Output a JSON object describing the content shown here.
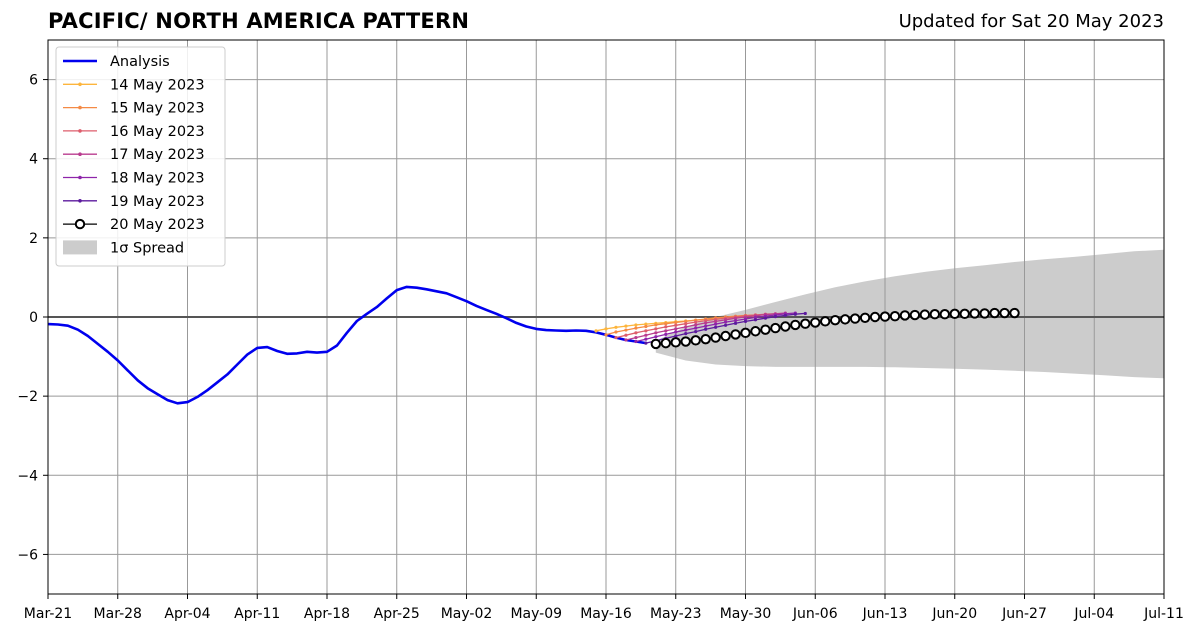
{
  "header": {
    "title": "PACIFIC/ NORTH AMERICA PATTERN",
    "updated": "Updated for Sat 20 May 2023"
  },
  "colors": {
    "analysis": "#0000ee",
    "spread": "#cccccc",
    "grid": "#999999",
    "forecast_20": "#000000"
  },
  "chart_data": {
    "type": "line",
    "title": "PACIFIC/ NORTH AMERICA PATTERN",
    "xlabel": "",
    "ylabel": "",
    "xlim": [
      "2023-03-21",
      "2023-07-11"
    ],
    "ylim": [
      -7,
      7
    ],
    "grid": true,
    "legend_position": "top-left",
    "x_tick_labels": [
      "Mar-21",
      "Mar-28",
      "Apr-04",
      "Apr-11",
      "Apr-18",
      "Apr-25",
      "May-02",
      "May-09",
      "May-16",
      "May-23",
      "May-30",
      "Jun-06",
      "Jun-13",
      "Jun-20",
      "Jun-27",
      "Jul-04",
      "Jul-11"
    ],
    "x_tick_dates": [
      "2023-03-21",
      "2023-03-28",
      "2023-04-04",
      "2023-04-11",
      "2023-04-18",
      "2023-04-25",
      "2023-05-02",
      "2023-05-09",
      "2023-05-16",
      "2023-05-23",
      "2023-05-30",
      "2023-06-06",
      "2023-06-13",
      "2023-06-20",
      "2023-06-27",
      "2023-07-04",
      "2023-07-11"
    ],
    "y_ticks": [
      -6,
      -4,
      -2,
      0,
      2,
      4,
      6
    ],
    "y_tick_labels": [
      "−6",
      "−4",
      "−2",
      "0",
      "2",
      "4",
      "6"
    ],
    "analysis": {
      "name": "Analysis",
      "color": "#0000ee",
      "points": [
        [
          "2023-03-21",
          -0.18
        ],
        [
          "2023-03-22",
          -0.19
        ],
        [
          "2023-03-23",
          -0.22
        ],
        [
          "2023-03-24",
          -0.32
        ],
        [
          "2023-03-25",
          -0.48
        ],
        [
          "2023-03-26",
          -0.68
        ],
        [
          "2023-03-27",
          -0.88
        ],
        [
          "2023-03-28",
          -1.1
        ],
        [
          "2023-03-29",
          -1.35
        ],
        [
          "2023-03-30",
          -1.6
        ],
        [
          "2023-03-31",
          -1.8
        ],
        [
          "2023-04-01",
          -1.95
        ],
        [
          "2023-04-02",
          -2.1
        ],
        [
          "2023-04-03",
          -2.18
        ],
        [
          "2023-04-04",
          -2.15
        ],
        [
          "2023-04-05",
          -2.02
        ],
        [
          "2023-04-06",
          -1.85
        ],
        [
          "2023-04-07",
          -1.65
        ],
        [
          "2023-04-08",
          -1.45
        ],
        [
          "2023-04-09",
          -1.2
        ],
        [
          "2023-04-10",
          -0.95
        ],
        [
          "2023-04-11",
          -0.78
        ],
        [
          "2023-04-12",
          -0.76
        ],
        [
          "2023-04-13",
          -0.86
        ],
        [
          "2023-04-14",
          -0.93
        ],
        [
          "2023-04-15",
          -0.92
        ],
        [
          "2023-04-16",
          -0.88
        ],
        [
          "2023-04-17",
          -0.9
        ],
        [
          "2023-04-18",
          -0.88
        ],
        [
          "2023-04-19",
          -0.72
        ],
        [
          "2023-04-20",
          -0.4
        ],
        [
          "2023-04-21",
          -0.1
        ],
        [
          "2023-04-22",
          0.08
        ],
        [
          "2023-04-23",
          0.25
        ],
        [
          "2023-04-24",
          0.47
        ],
        [
          "2023-04-25",
          0.68
        ],
        [
          "2023-04-26",
          0.76
        ],
        [
          "2023-04-27",
          0.74
        ],
        [
          "2023-04-28",
          0.7
        ],
        [
          "2023-04-29",
          0.65
        ],
        [
          "2023-04-30",
          0.6
        ],
        [
          "2023-05-01",
          0.5
        ],
        [
          "2023-05-02",
          0.4
        ],
        [
          "2023-05-03",
          0.28
        ],
        [
          "2023-05-04",
          0.18
        ],
        [
          "2023-05-05",
          0.08
        ],
        [
          "2023-05-06",
          -0.03
        ],
        [
          "2023-05-07",
          -0.15
        ],
        [
          "2023-05-08",
          -0.24
        ],
        [
          "2023-05-09",
          -0.3
        ],
        [
          "2023-05-10",
          -0.33
        ],
        [
          "2023-05-11",
          -0.34
        ],
        [
          "2023-05-12",
          -0.35
        ],
        [
          "2023-05-13",
          -0.34
        ],
        [
          "2023-05-14",
          -0.35
        ],
        [
          "2023-05-15",
          -0.39
        ],
        [
          "2023-05-16",
          -0.45
        ],
        [
          "2023-05-17",
          -0.52
        ],
        [
          "2023-05-18",
          -0.58
        ],
        [
          "2023-05-19",
          -0.62
        ],
        [
          "2023-05-20",
          -0.66
        ]
      ]
    },
    "forecasts": [
      {
        "name": "14 May 2023",
        "color": "#fdb53c",
        "start": "2023-05-15",
        "values": [
          -0.35,
          -0.3,
          -0.26,
          -0.23,
          -0.2,
          -0.18,
          -0.16,
          -0.14,
          -0.12,
          -0.1,
          -0.08,
          -0.06,
          -0.04,
          -0.02,
          0.0,
          0.01,
          0.02
        ]
      },
      {
        "name": "15 May 2023",
        "color": "#f48a45",
        "start": "2023-05-16",
        "values": [
          -0.45,
          -0.38,
          -0.33,
          -0.28,
          -0.24,
          -0.2,
          -0.17,
          -0.14,
          -0.11,
          -0.08,
          -0.05,
          -0.02,
          0.0,
          0.02,
          0.04,
          0.05,
          0.06
        ]
      },
      {
        "name": "16 May 2023",
        "color": "#dd5d6c",
        "start": "2023-05-17",
        "values": [
          -0.52,
          -0.46,
          -0.4,
          -0.35,
          -0.3,
          -0.25,
          -0.21,
          -0.17,
          -0.13,
          -0.09,
          -0.06,
          -0.03,
          0.0,
          0.03,
          0.05,
          0.07,
          0.08
        ]
      },
      {
        "name": "17 May 2023",
        "color": "#b93c8f",
        "start": "2023-05-18",
        "values": [
          -0.58,
          -0.52,
          -0.46,
          -0.4,
          -0.35,
          -0.3,
          -0.25,
          -0.2,
          -0.15,
          -0.11,
          -0.07,
          -0.03,
          0.0,
          0.03,
          0.06,
          0.08,
          0.1
        ]
      },
      {
        "name": "18 May 2023",
        "color": "#8e24aa",
        "start": "2023-05-19",
        "values": [
          -0.62,
          -0.56,
          -0.5,
          -0.44,
          -0.38,
          -0.33,
          -0.28,
          -0.23,
          -0.18,
          -0.13,
          -0.09,
          -0.05,
          -0.01,
          0.02,
          0.05,
          0.08,
          0.1
        ]
      },
      {
        "name": "19 May 2023",
        "color": "#5c1a9e",
        "start": "2023-05-20",
        "values": [
          -0.66,
          -0.6,
          -0.54,
          -0.48,
          -0.42,
          -0.37,
          -0.31,
          -0.26,
          -0.21,
          -0.16,
          -0.11,
          -0.07,
          -0.03,
          0.01,
          0.04,
          0.07,
          0.09
        ]
      },
      {
        "name": "20 May 2023",
        "color": "#000000",
        "start": "2023-05-21",
        "open_markers": true,
        "values": [
          -0.68,
          -0.66,
          -0.64,
          -0.62,
          -0.59,
          -0.56,
          -0.52,
          -0.48,
          -0.44,
          -0.4,
          -0.36,
          -0.32,
          -0.28,
          -0.24,
          -0.2,
          -0.17,
          -0.14,
          -0.11,
          -0.08,
          -0.06,
          -0.04,
          -0.02,
          0.0,
          0.01,
          0.02,
          0.04,
          0.05,
          0.06,
          0.07,
          0.07,
          0.08,
          0.08,
          0.09,
          0.09,
          0.1,
          0.1,
          0.1
        ]
      }
    ],
    "spread": {
      "name": "1σ Spread",
      "color": "#cccccc",
      "start": "2023-05-21",
      "step_days": 3,
      "upper": [
        -0.6,
        -0.25,
        0.0,
        0.18,
        0.38,
        0.57,
        0.75,
        0.9,
        1.03,
        1.14,
        1.23,
        1.31,
        1.39,
        1.46,
        1.52,
        1.59,
        1.66,
        1.7
      ],
      "lower": [
        -0.9,
        -1.1,
        -1.2,
        -1.24,
        -1.26,
        -1.26,
        -1.26,
        -1.26,
        -1.27,
        -1.29,
        -1.31,
        -1.33,
        -1.36,
        -1.39,
        -1.43,
        -1.47,
        -1.52,
        -1.55
      ]
    },
    "legend": {
      "position": "top-left",
      "entries": [
        {
          "label": "Analysis",
          "kind": "thick-line",
          "color": "#0000ee"
        },
        {
          "label": "14 May 2023",
          "kind": "line-dot",
          "color": "#fdb53c"
        },
        {
          "label": "15 May 2023",
          "kind": "line-dot",
          "color": "#f48a45"
        },
        {
          "label": "16 May 2023",
          "kind": "line-dot",
          "color": "#dd5d6c"
        },
        {
          "label": "17 May 2023",
          "kind": "line-dot",
          "color": "#b93c8f"
        },
        {
          "label": "18 May 2023",
          "kind": "line-dot",
          "color": "#8e24aa"
        },
        {
          "label": "19 May 2023",
          "kind": "line-dot",
          "color": "#5c1a9e"
        },
        {
          "label": "20 May 2023",
          "kind": "line-circle",
          "color": "#000000"
        },
        {
          "label": "1σ Spread",
          "kind": "patch",
          "color": "#cccccc"
        }
      ]
    }
  }
}
